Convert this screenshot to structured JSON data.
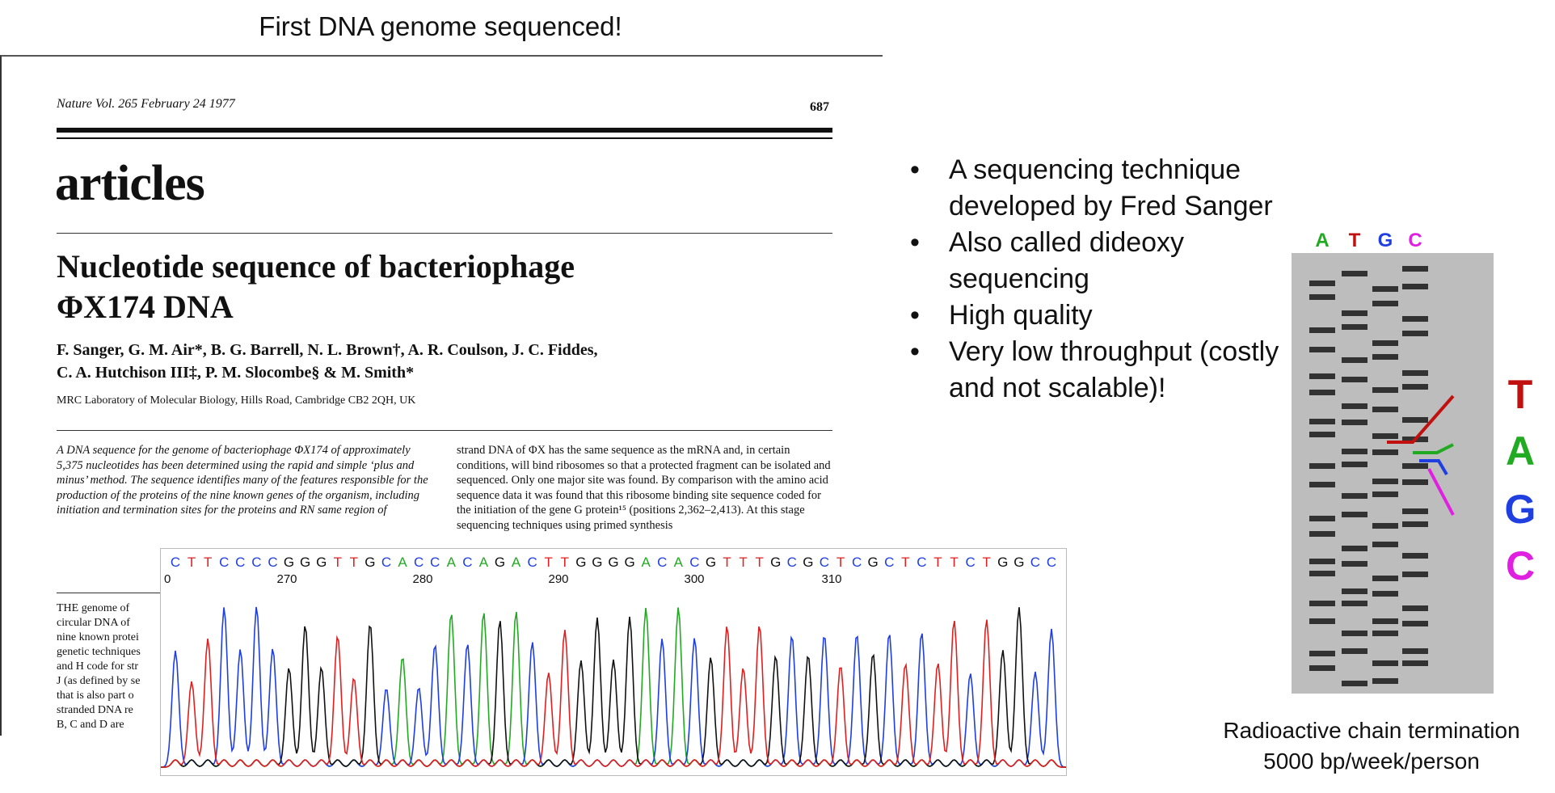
{
  "slide": {
    "title": "First DNA genome sequenced!",
    "bullets": [
      "A sequencing technique developed by Fred Sanger",
      "Also called dideoxy sequencing",
      "High quality",
      "Very low throughput (costly and not scalable)!"
    ],
    "caption_line1": "Radioactive chain termination",
    "caption_line2": "5000 bp/week/person"
  },
  "paper": {
    "journal": "Nature Vol. 265 February 24 1977",
    "page": "687",
    "section": "articles",
    "title_line1": "Nucleotide sequence of bacteriophage",
    "title_line2": "ΦX174 DNA",
    "authors_line1": "F. Sanger, G. M. Air*, B. G. Barrell, N. L. Brown†, A. R. Coulson, J. C. Fiddes,",
    "authors_line2": "C. A. Hutchison III‡, P. M. Slocombe§ & M. Smith*",
    "affiliation": "MRC Laboratory of Molecular Biology, Hills Road, Cambridge CB2 2QH, UK",
    "abstract": "A DNA sequence for the genome of bacteriophage ΦX174 of approximately 5,375 nucleotides has been determined using the rapid and simple ‘plus and minus’ method. The sequence identifies many of the features responsible for the production of the proteins of the nine known genes of the organism, including initiation and termination sites for the proteins and RN same region of",
    "column2": "strand DNA of ΦX has the same sequence as the mRNA and, in certain conditions, will bind ribosomes so that a protected fragment can be isolated and sequenced. Only one major site was found. By comparison with the amino acid sequence data it was found that this ribosome binding site sequence coded for the initiation of the gene G protein¹⁵ (positions 2,362–2,413). At this stage sequencing techniques using primed synthesis",
    "body_fragment": "THE genome of\ncircular DNA of\nnine known protei\ngenetic techniques\nand H code for str\nJ (as defined by se\nthat is also part o\nstranded DNA re\nB, C and D are"
  },
  "chromatogram": {
    "sequence": "CTTCCCCGGGTTGCACCACAGACTTGGGGACACGTTTGCGCTCGCTCTTCTGGCC",
    "tick_labels": [
      "0",
      "270",
      "280",
      "290",
      "300",
      "310"
    ],
    "colors": {
      "A": "#22aa22",
      "C": "#1f3fe0",
      "G": "#111111",
      "T": "#e02020"
    }
  },
  "gel": {
    "lane_labels": [
      "A",
      "T",
      "G",
      "C"
    ],
    "lane_colors": [
      "#22aa22",
      "#c01010",
      "#1f3fe0",
      "#e020e0"
    ],
    "read_letters": [
      "T",
      "A",
      "G",
      "C"
    ],
    "read_colors": [
      "#c01010",
      "#22aa22",
      "#1f3fe0",
      "#e020e0"
    ]
  }
}
